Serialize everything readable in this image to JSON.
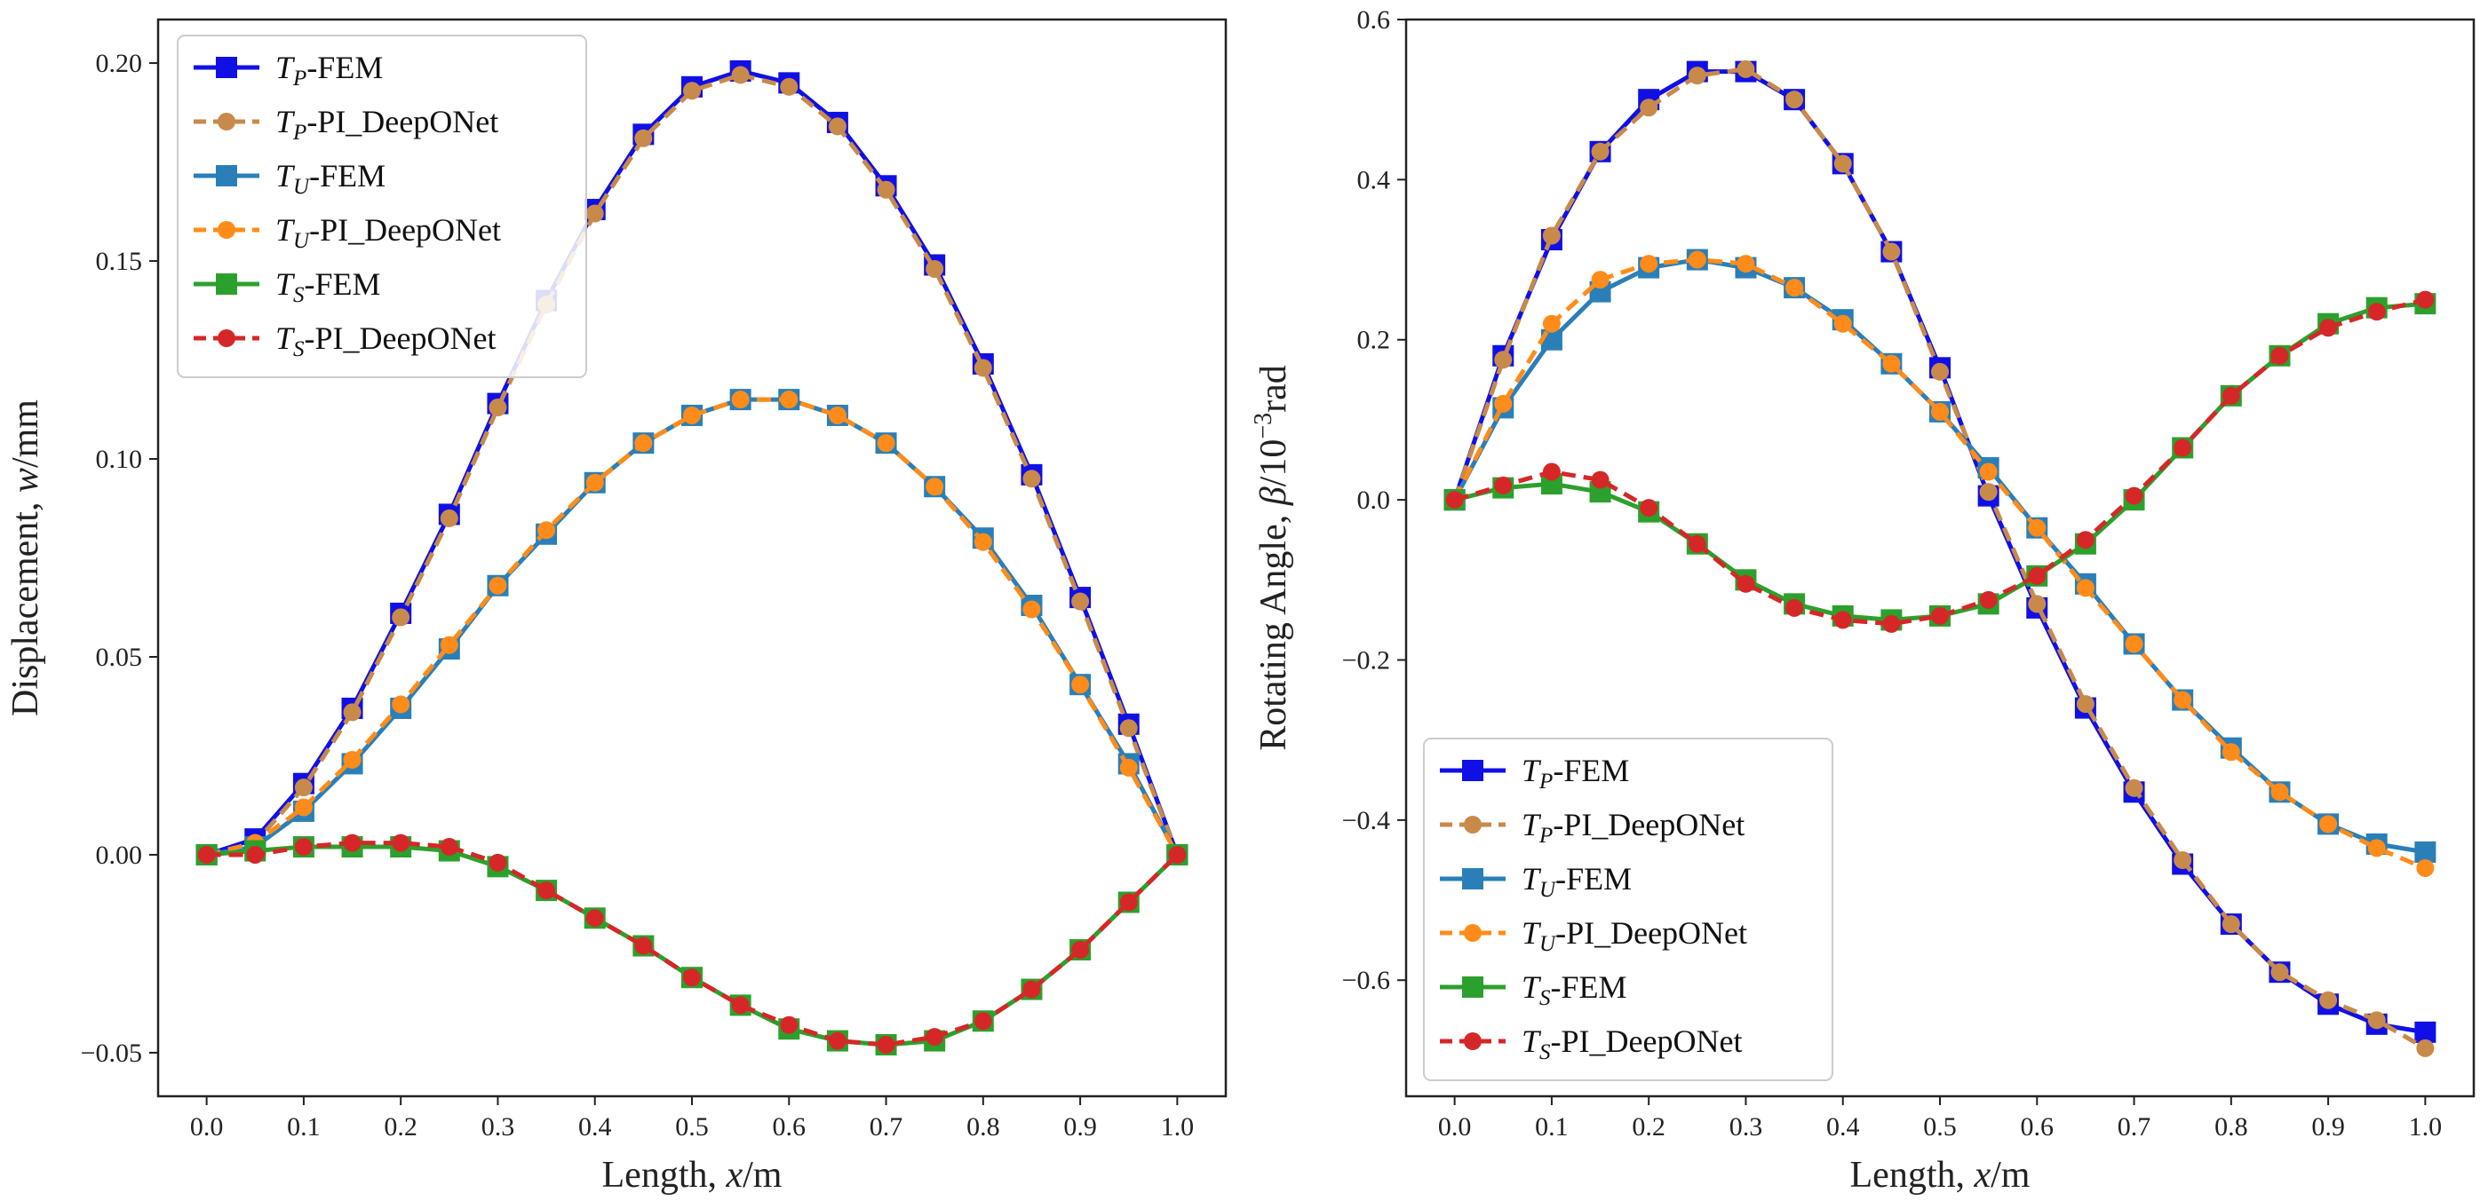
{
  "chart_data": [
    {
      "type": "line",
      "xlabel": "Length, x/m",
      "xlabel_prefix": "Length, ",
      "xlabel_var": "x",
      "xlabel_suffix": "/m",
      "ylabel": "Displacement, w/mm",
      "ylabel_prefix": "Displacement, ",
      "ylabel_var": "w",
      "ylabel_suffix": "/mm",
      "xlim": [
        -0.05,
        1.05
      ],
      "ylim": [
        -0.061,
        0.211
      ],
      "xticks": [
        "0.0",
        "0.1",
        "0.2",
        "0.3",
        "0.4",
        "0.5",
        "0.6",
        "0.7",
        "0.8",
        "0.9",
        "1.0"
      ],
      "xtick_values": [
        0,
        0.1,
        0.2,
        0.3,
        0.4,
        0.5,
        0.6,
        0.7,
        0.8,
        0.9,
        1.0
      ],
      "yticks": [
        "−0.05",
        "0.00",
        "0.05",
        "0.10",
        "0.15",
        "0.20"
      ],
      "ytick_values": [
        -0.05,
        0,
        0.05,
        0.1,
        0.15,
        0.2
      ],
      "legend_position": "upper-left",
      "x": [
        0,
        0.05,
        0.1,
        0.15,
        0.2,
        0.25,
        0.3,
        0.35,
        0.4,
        0.45,
        0.5,
        0.55,
        0.6,
        0.65,
        0.7,
        0.75,
        0.8,
        0.85,
        0.9,
        0.95,
        1.0
      ],
      "series": [
        {
          "label_main": "T",
          "label_sub": "P",
          "label_rest": "-FEM",
          "name": "TP-FEM",
          "color": "#1010e6",
          "style": "solid",
          "marker": "square",
          "values": [
            0,
            0.004,
            0.018,
            0.037,
            0.061,
            0.086,
            0.114,
            0.14,
            0.163,
            0.182,
            0.194,
            0.198,
            0.195,
            0.185,
            0.169,
            0.149,
            0.124,
            0.096,
            0.065,
            0.033,
            0
          ]
        },
        {
          "label_main": "T",
          "label_sub": "P",
          "label_rest": "-PI_DeepONet",
          "name": "TP-PI_DeepONet",
          "color": "#c88a4a",
          "style": "dashed",
          "marker": "circle",
          "values": [
            0,
            0.003,
            0.017,
            0.036,
            0.06,
            0.085,
            0.113,
            0.139,
            0.162,
            0.181,
            0.193,
            0.197,
            0.194,
            0.184,
            0.168,
            0.148,
            0.123,
            0.095,
            0.064,
            0.032,
            0
          ]
        },
        {
          "label_main": "T",
          "label_sub": "U",
          "label_rest": "-FEM",
          "name": "TU-FEM",
          "color": "#2a7fb8",
          "style": "solid",
          "marker": "square",
          "values": [
            0,
            0.002,
            0.011,
            0.023,
            0.037,
            0.052,
            0.068,
            0.081,
            0.094,
            0.104,
            0.111,
            0.115,
            0.115,
            0.111,
            0.104,
            0.093,
            0.08,
            0.063,
            0.043,
            0.023,
            0
          ]
        },
        {
          "label_main": "T",
          "label_sub": "U",
          "label_rest": "-PI_DeepONet",
          "name": "TU-PI_DeepONet",
          "color": "#ff8c1a",
          "style": "dashed",
          "marker": "circle",
          "values": [
            0,
            0.003,
            0.012,
            0.024,
            0.038,
            0.053,
            0.068,
            0.082,
            0.094,
            0.104,
            0.111,
            0.115,
            0.115,
            0.111,
            0.104,
            0.093,
            0.079,
            0.062,
            0.043,
            0.022,
            0
          ]
        },
        {
          "label_main": "T",
          "label_sub": "S",
          "label_rest": "-FEM",
          "name": "TS-FEM",
          "color": "#2ca02c",
          "style": "solid",
          "marker": "square",
          "values": [
            0,
            0.001,
            0.002,
            0.002,
            0.002,
            0.001,
            -0.003,
            -0.009,
            -0.016,
            -0.023,
            -0.031,
            -0.038,
            -0.044,
            -0.047,
            -0.048,
            -0.047,
            -0.042,
            -0.034,
            -0.024,
            -0.012,
            0
          ]
        },
        {
          "label_main": "T",
          "label_sub": "S",
          "label_rest": "-PI_DeepONet",
          "name": "TS-PI_DeepONet",
          "color": "#d62728",
          "style": "dashed",
          "marker": "circle",
          "values": [
            0,
            0.0,
            0.002,
            0.003,
            0.003,
            0.002,
            -0.002,
            -0.009,
            -0.016,
            -0.023,
            -0.031,
            -0.038,
            -0.043,
            -0.047,
            -0.048,
            -0.046,
            -0.042,
            -0.034,
            -0.024,
            -0.012,
            0
          ]
        }
      ]
    },
    {
      "type": "line",
      "xlabel": "Length, x/m",
      "xlabel_prefix": "Length, ",
      "xlabel_var": "x",
      "xlabel_suffix": "/m",
      "ylabel": "Rotating Angle, β/10⁻³rad",
      "ylabel_prefix": "Rotating Angle, ",
      "ylabel_var": "β",
      "ylabel_suffix": "/10",
      "ylabel_sup": "−3",
      "ylabel_unit": "rad",
      "xlim": [
        -0.05,
        1.05
      ],
      "ylim": [
        -0.745,
        0.6
      ],
      "xticks": [
        "0.0",
        "0.1",
        "0.2",
        "0.3",
        "0.4",
        "0.5",
        "0.6",
        "0.7",
        "0.8",
        "0.9",
        "1.0"
      ],
      "xtick_values": [
        0,
        0.1,
        0.2,
        0.3,
        0.4,
        0.5,
        0.6,
        0.7,
        0.8,
        0.9,
        1.0
      ],
      "yticks": [
        "−0.6",
        "−0.4",
        "−0.2",
        "0.0",
        "0.2",
        "0.4",
        "0.6"
      ],
      "ytick_values": [
        -0.6,
        -0.4,
        -0.2,
        0,
        0.2,
        0.4,
        0.6
      ],
      "legend_position": "lower-left",
      "x": [
        0,
        0.05,
        0.1,
        0.15,
        0.2,
        0.25,
        0.3,
        0.35,
        0.4,
        0.45,
        0.5,
        0.55,
        0.6,
        0.65,
        0.7,
        0.75,
        0.8,
        0.85,
        0.9,
        0.95,
        1.0
      ],
      "series": [
        {
          "label_main": "T",
          "label_sub": "P",
          "label_rest": "-FEM",
          "name": "TP-FEM",
          "color": "#1010e6",
          "style": "solid",
          "marker": "square",
          "values": [
            0,
            0.18,
            0.325,
            0.435,
            0.5,
            0.535,
            0.535,
            0.5,
            0.42,
            0.31,
            0.165,
            0.005,
            -0.135,
            -0.26,
            -0.365,
            -0.455,
            -0.53,
            -0.59,
            -0.63,
            -0.655,
            -0.665
          ]
        },
        {
          "label_main": "T",
          "label_sub": "P",
          "label_rest": "-PI_DeepONet",
          "name": "TP-PI_DeepONet",
          "color": "#c88a4a",
          "style": "dashed",
          "marker": "circle",
          "values": [
            0,
            0.175,
            0.33,
            0.435,
            0.49,
            0.53,
            0.538,
            0.5,
            0.42,
            0.31,
            0.16,
            0.01,
            -0.13,
            -0.255,
            -0.36,
            -0.45,
            -0.53,
            -0.59,
            -0.625,
            -0.65,
            -0.685
          ]
        },
        {
          "label_main": "T",
          "label_sub": "U",
          "label_rest": "-FEM",
          "name": "TU-FEM",
          "color": "#2a7fb8",
          "style": "solid",
          "marker": "square",
          "values": [
            0,
            0.115,
            0.2,
            0.26,
            0.29,
            0.3,
            0.29,
            0.265,
            0.225,
            0.17,
            0.11,
            0.04,
            -0.035,
            -0.105,
            -0.18,
            -0.25,
            -0.31,
            -0.365,
            -0.405,
            -0.43,
            -0.44
          ]
        },
        {
          "label_main": "T",
          "label_sub": "U",
          "label_rest": "-PI_DeepONet",
          "name": "TU-PI_DeepONet",
          "color": "#ff8c1a",
          "style": "dashed",
          "marker": "circle",
          "values": [
            0,
            0.12,
            0.22,
            0.275,
            0.295,
            0.3,
            0.295,
            0.265,
            0.22,
            0.17,
            0.11,
            0.035,
            -0.035,
            -0.11,
            -0.18,
            -0.25,
            -0.315,
            -0.365,
            -0.405,
            -0.435,
            -0.46
          ]
        },
        {
          "label_main": "T",
          "label_sub": "S",
          "label_rest": "-FEM",
          "name": "TS-FEM",
          "color": "#2ca02c",
          "style": "solid",
          "marker": "square",
          "values": [
            0,
            0.015,
            0.02,
            0.01,
            -0.015,
            -0.055,
            -0.1,
            -0.13,
            -0.145,
            -0.15,
            -0.145,
            -0.13,
            -0.095,
            -0.055,
            0.0,
            0.065,
            0.13,
            0.18,
            0.22,
            0.24,
            0.245
          ]
        },
        {
          "label_main": "T",
          "label_sub": "S",
          "label_rest": "-PI_DeepONet",
          "name": "TS-PI_DeepONet",
          "color": "#d62728",
          "style": "dashed",
          "marker": "circle",
          "values": [
            0,
            0.018,
            0.035,
            0.025,
            -0.01,
            -0.055,
            -0.105,
            -0.135,
            -0.15,
            -0.155,
            -0.145,
            -0.125,
            -0.095,
            -0.05,
            0.005,
            0.065,
            0.13,
            0.18,
            0.215,
            0.235,
            0.25
          ]
        }
      ]
    }
  ]
}
